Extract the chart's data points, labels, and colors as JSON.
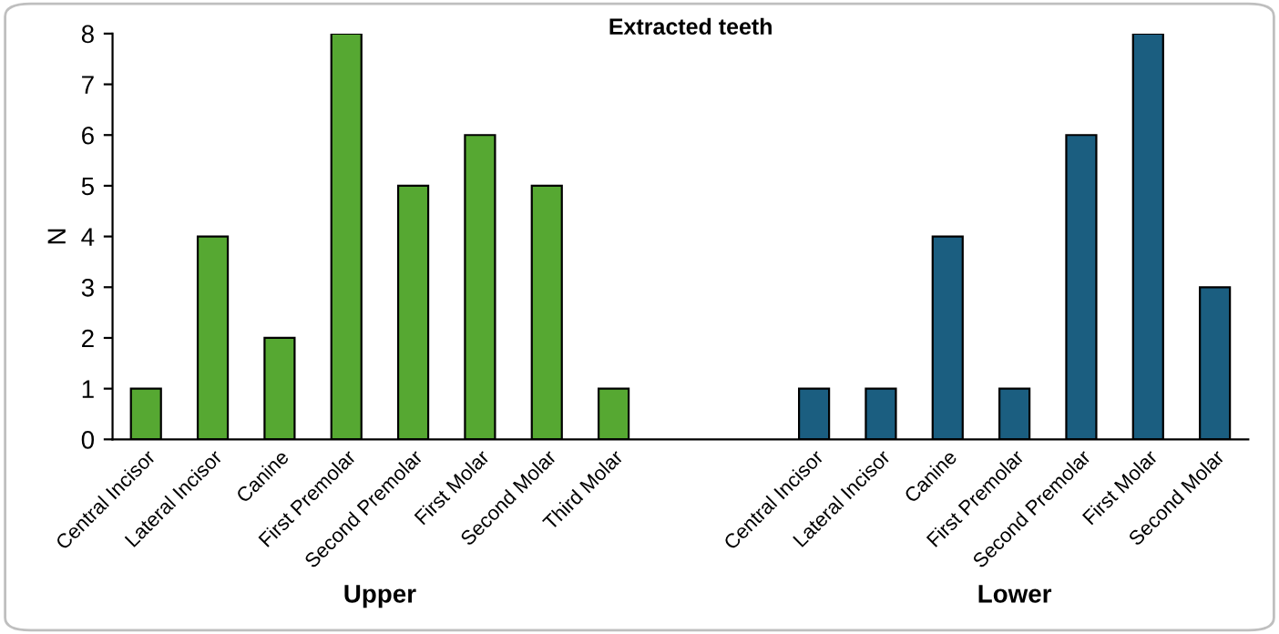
{
  "chart_data": {
    "type": "bar",
    "title": "Extracted teeth",
    "ylabel": "N",
    "categories": [
      "Central Incisor",
      "Lateral Incisor",
      "Canine",
      "First Premolar",
      "Second Premolar",
      "First Molar",
      "Second Molar",
      "Third Molar",
      null,
      null,
      "Central Incisor",
      "Lateral Incisor",
      "Canine",
      "First Premolar",
      "Second Premolar",
      "First Molar",
      "Second Molar"
    ],
    "series": [
      {
        "color": "#56a832",
        "values": [
          1,
          4,
          2,
          8,
          5,
          6,
          5,
          1,
          null,
          null,
          null,
          null,
          null,
          null,
          null,
          null,
          null
        ]
      },
      {
        "color": "#1b5e80",
        "values": [
          null,
          null,
          null,
          null,
          null,
          null,
          null,
          null,
          null,
          null,
          1,
          1,
          4,
          1,
          6,
          8,
          3
        ]
      }
    ],
    "ylim": [
      0,
      8
    ],
    "yticks": [
      0,
      1,
      2,
      3,
      4,
      5,
      6,
      7,
      8
    ],
    "annotations": [
      "Upper",
      "Lower"
    ],
    "grid": false,
    "legend": false
  }
}
